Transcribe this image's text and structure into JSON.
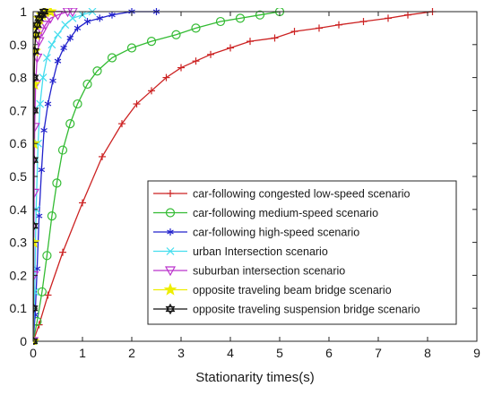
{
  "chart_data": {
    "type": "line",
    "title": "",
    "xlabel": "Stationarity times(s)",
    "ylabel": "",
    "xlim": [
      0,
      9
    ],
    "ylim": [
      0,
      1
    ],
    "x_ticks": [
      0,
      1,
      2,
      3,
      4,
      5,
      6,
      7,
      8,
      9
    ],
    "y_ticks": [
      0,
      0.1,
      0.2,
      0.3,
      0.4,
      0.5,
      0.6,
      0.7,
      0.8,
      0.9,
      1
    ],
    "grid": false,
    "legend_position": "bottom-right",
    "series": [
      {
        "name": "car-following congested low-speed scenario",
        "color": "#cc2222",
        "marker": "plus",
        "x": [
          0,
          0.12,
          0.3,
          0.6,
          1.0,
          1.4,
          1.8,
          2.1,
          2.4,
          2.7,
          3.0,
          3.3,
          3.6,
          4.0,
          4.4,
          4.9,
          5.3,
          5.8,
          6.2,
          6.7,
          7.2,
          7.6,
          8.1
        ],
        "y": [
          0,
          0.05,
          0.14,
          0.27,
          0.42,
          0.56,
          0.66,
          0.72,
          0.76,
          0.8,
          0.83,
          0.85,
          0.87,
          0.89,
          0.91,
          0.92,
          0.94,
          0.95,
          0.96,
          0.97,
          0.98,
          0.99,
          1.0
        ]
      },
      {
        "name": "car-following medium-speed scenario",
        "color": "#33bb33",
        "marker": "circle",
        "x": [
          0,
          0.08,
          0.18,
          0.28,
          0.38,
          0.48,
          0.6,
          0.75,
          0.9,
          1.1,
          1.3,
          1.6,
          2.0,
          2.4,
          2.9,
          3.3,
          3.8,
          4.2,
          4.6,
          5.0
        ],
        "y": [
          0,
          0.06,
          0.15,
          0.26,
          0.38,
          0.48,
          0.58,
          0.66,
          0.72,
          0.78,
          0.82,
          0.86,
          0.89,
          0.91,
          0.93,
          0.95,
          0.97,
          0.98,
          0.99,
          1.0
        ]
      },
      {
        "name": "car-following high-speed  scenario",
        "color": "#2222cc",
        "marker": "asterisk",
        "x": [
          0,
          0.04,
          0.08,
          0.12,
          0.17,
          0.22,
          0.3,
          0.4,
          0.5,
          0.62,
          0.75,
          0.9,
          1.1,
          1.35,
          1.6,
          2.0,
          2.5
        ],
        "y": [
          0,
          0.08,
          0.22,
          0.38,
          0.52,
          0.64,
          0.72,
          0.79,
          0.85,
          0.89,
          0.92,
          0.95,
          0.97,
          0.98,
          0.99,
          1.0,
          1.0
        ]
      },
      {
        "name": "urban Intersection scenario",
        "color": "#44ddee",
        "marker": "x",
        "x": [
          0,
          0.03,
          0.06,
          0.1,
          0.14,
          0.2,
          0.28,
          0.38,
          0.5,
          0.65,
          0.8,
          1.0,
          1.2
        ],
        "y": [
          0,
          0.15,
          0.4,
          0.6,
          0.72,
          0.8,
          0.86,
          0.9,
          0.93,
          0.96,
          0.98,
          0.99,
          1.0
        ]
      },
      {
        "name": "suburban intersection scenario",
        "color": "#bb33cc",
        "marker": "triangle-down",
        "x": [
          0,
          0.01,
          0.02,
          0.03,
          0.05,
          0.08,
          0.12,
          0.18,
          0.25,
          0.35,
          0.5,
          0.7,
          0.8
        ],
        "y": [
          0,
          0.2,
          0.45,
          0.65,
          0.78,
          0.86,
          0.91,
          0.94,
          0.96,
          0.98,
          0.99,
          1.0,
          1.0
        ]
      },
      {
        "name": "opposite traveling beam bridge scenario",
        "color": "#eeee00",
        "marker": "star",
        "x": [
          0,
          0.005,
          0.01,
          0.02,
          0.03,
          0.05,
          0.08,
          0.12,
          0.18,
          0.25,
          0.35
        ],
        "y": [
          0,
          0.3,
          0.6,
          0.78,
          0.88,
          0.93,
          0.96,
          0.98,
          0.99,
          1.0,
          1.0
        ]
      },
      {
        "name": "opposite traveling suspension bridge scenario",
        "color": "#111111",
        "marker": "hexagram",
        "x": [
          0,
          0.003,
          0.006,
          0.01,
          0.015,
          0.02,
          0.03,
          0.05,
          0.08,
          0.12,
          0.18,
          0.22
        ],
        "y": [
          0,
          0.1,
          0.35,
          0.55,
          0.7,
          0.8,
          0.88,
          0.93,
          0.96,
          0.98,
          0.99,
          1.0
        ]
      }
    ]
  }
}
